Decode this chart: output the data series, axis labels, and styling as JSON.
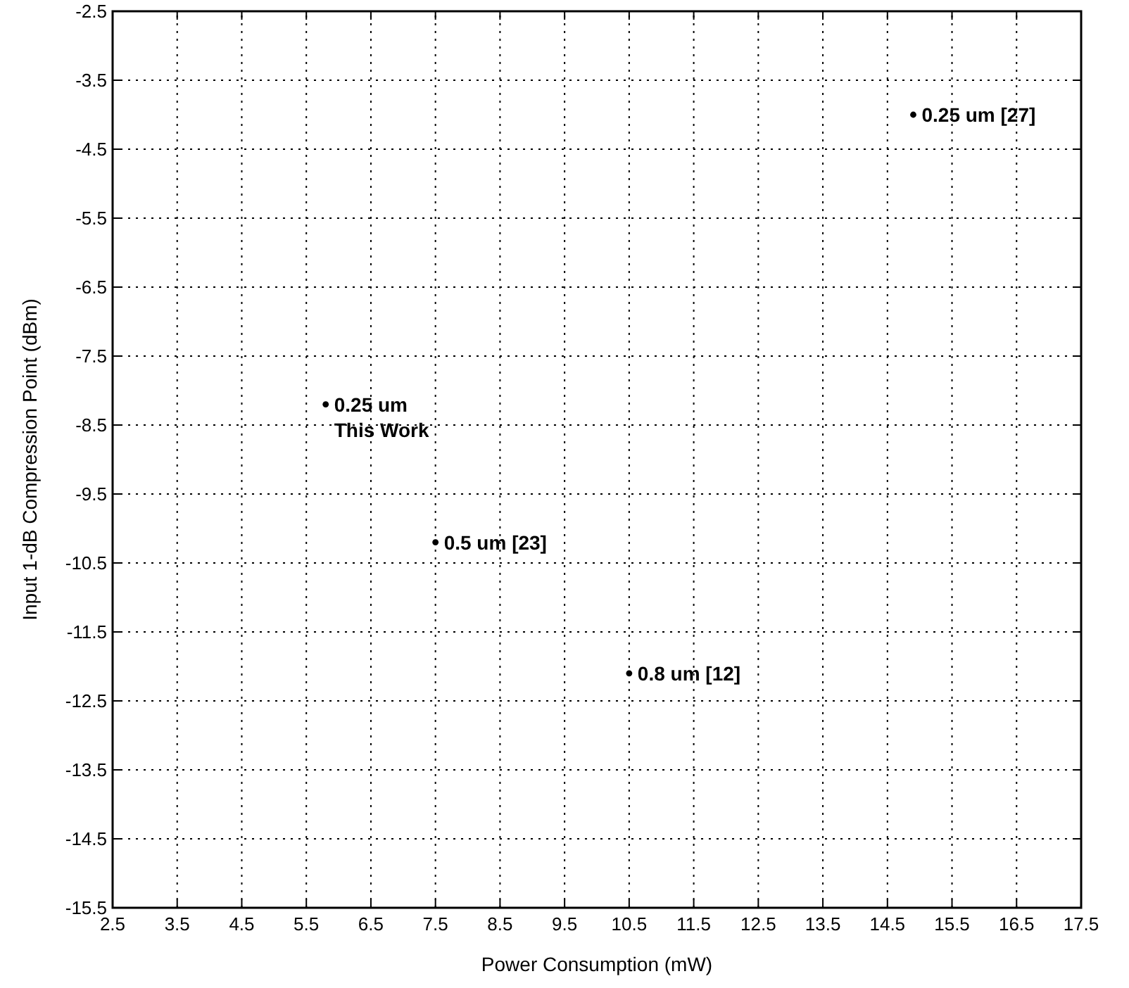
{
  "chart_data": {
    "type": "scatter",
    "xlabel": "Power Consumption (mW)",
    "ylabel": "Input 1-dB Compression Point (dBm)",
    "x": [
      14.9,
      5.8,
      7.5,
      10.5
    ],
    "values": [
      -4.0,
      -8.2,
      -10.2,
      -12.1
    ],
    "color": "#000000",
    "marker": "circle",
    "grid": true,
    "line_style": "dotted",
    "xlim": [
      2.5,
      17.5
    ],
    "xticks": [
      2.5,
      3.5,
      4.5,
      5.5,
      6.5,
      7.5,
      8.5,
      9.5,
      10.5,
      11.5,
      12.5,
      13.5,
      14.5,
      15.5,
      16.5,
      17.5
    ],
    "ylim": [
      -15.5,
      -2.5
    ],
    "yticks": [
      -15.5,
      -14.5,
      -13.5,
      -12.5,
      -11.5,
      -10.5,
      -9.5,
      -8.5,
      -7.5,
      -6.5,
      -5.5,
      -4.5,
      -3.5,
      -2.5
    ],
    "annotations": [
      {
        "text": "0.25 um [27]",
        "x": 14.9,
        "y": -4.0
      },
      {
        "text": "0.25 um\nThis Work",
        "x": 5.8,
        "y": -8.2
      },
      {
        "text": "0.5 um [23]",
        "x": 7.5,
        "y": -10.2
      },
      {
        "text": "0.8 um [12]",
        "x": 10.5,
        "y": -12.1
      }
    ]
  }
}
